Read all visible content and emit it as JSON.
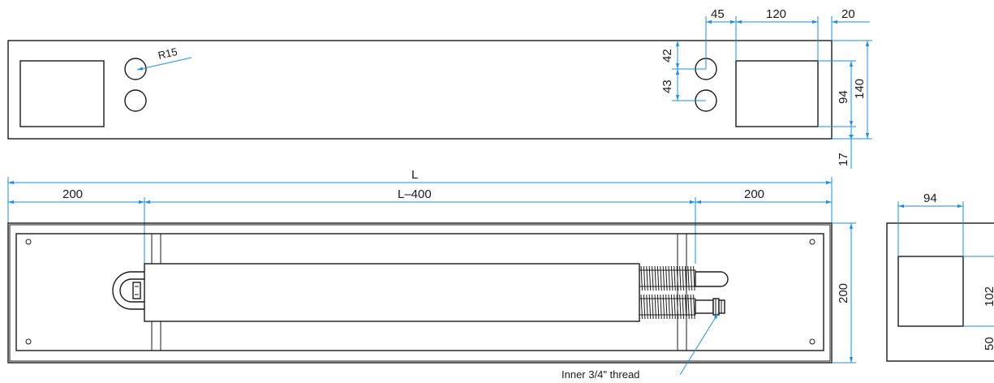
{
  "top_view": {
    "radius_label": "R15",
    "dim_45": "45",
    "dim_120": "120",
    "dim_20": "20",
    "dim_42": "42",
    "dim_43": "43",
    "dim_94": "94",
    "dim_140": "140",
    "dim_17": "17"
  },
  "front_view": {
    "dim_L": "L",
    "dim_200_left": "200",
    "dim_L400": "L–400",
    "dim_200_right": "200",
    "dim_200_height": "200",
    "thread_note": "Inner 3/4\" thread"
  },
  "side_view": {
    "dim_94": "94",
    "dim_102": "102",
    "dim_50": "50"
  },
  "colors": {
    "outline": "#1a1a1a",
    "dimension": "#1f8fd6"
  }
}
